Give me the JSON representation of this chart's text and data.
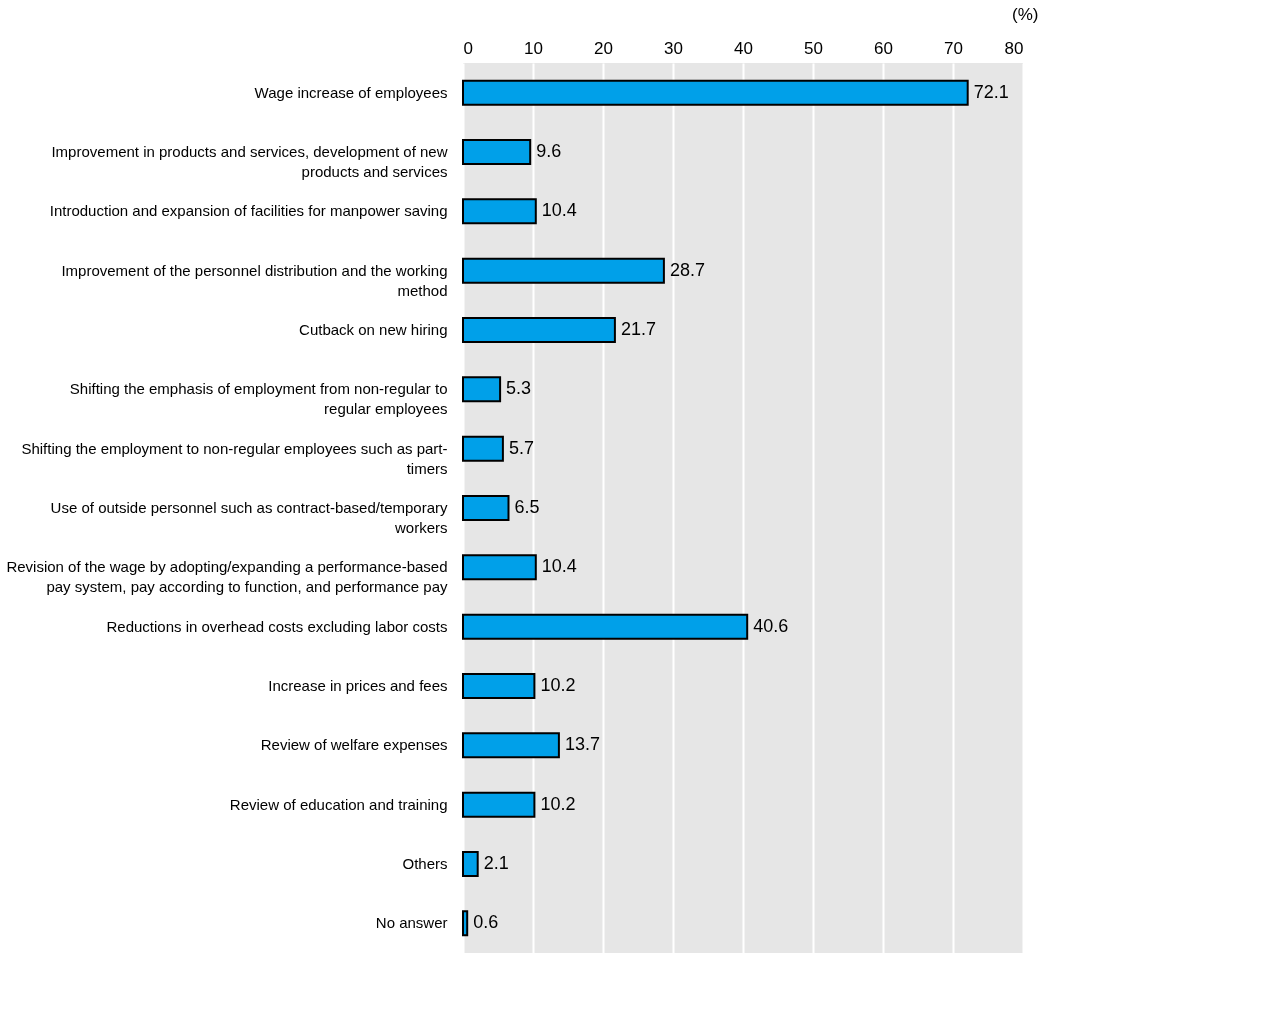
{
  "chart_data": {
    "type": "bar",
    "orientation": "horizontal",
    "xlabel": "(%)",
    "categories": [
      "Wage increase of employees",
      "Improvement in products and services, development of new products and services",
      "Introduction and expansion of facilities for manpower saving",
      "Improvement of the personnel distribution and the working method",
      "Cutback on new hiring",
      "Shifting the emphasis of employment from non-regular to regular employees",
      "Shifting the employment to non-regular employees such as part-timers",
      "Use of outside personnel such as contract-based/temporary workers",
      "Revision of the wage by adopting/expanding a performance-based pay system, pay according to function, and performance pay",
      "Reductions in overhead costs excluding labor costs",
      "Increase in prices and fees",
      "Review of welfare expenses",
      "Review of education and training",
      "Others",
      "No answer"
    ],
    "values": [
      72.1,
      9.6,
      10.4,
      28.7,
      21.7,
      5.3,
      5.7,
      6.5,
      10.4,
      40.6,
      10.2,
      13.7,
      10.2,
      2.1,
      0.6
    ],
    "color": "#00a0e9",
    "xlim": [
      0,
      80
    ],
    "xticks": [
      0,
      10,
      20,
      30,
      40,
      50,
      60,
      70,
      80
    ],
    "grid": "x",
    "data_labels": true
  }
}
